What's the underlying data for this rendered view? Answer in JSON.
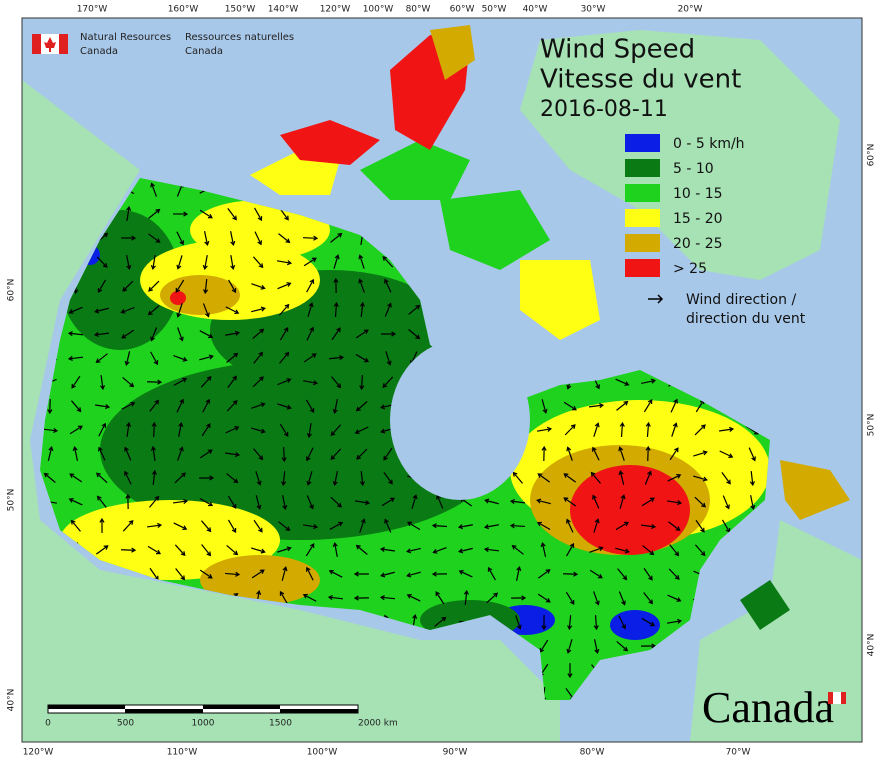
{
  "header": {
    "org_en": [
      "Natural Resources",
      "Canada"
    ],
    "org_fr": [
      "Ressources naturelles",
      "Canada"
    ]
  },
  "title": {
    "en": "Wind Speed",
    "fr": "Vitesse du vent",
    "date": "2016-08-11"
  },
  "legend": {
    "items": [
      {
        "label": "0 - 5 km/h",
        "color": "#0a1ee6"
      },
      {
        "label": "5 - 10",
        "color": "#0a7a14"
      },
      {
        "label": "10 - 15",
        "color": "#1ed21e"
      },
      {
        "label": "15 - 20",
        "color": "#ffff14"
      },
      {
        "label": "20 - 25",
        "color": "#d2aa00"
      },
      {
        "label": "> 25",
        "color": "#f01414"
      }
    ],
    "arrow": [
      "Wind direction /",
      "direction du vent"
    ]
  },
  "axes": {
    "top": [
      "170°W",
      "160°W",
      "150°W",
      "140°W",
      "120°W",
      "100°W",
      "80°W",
      "60°W",
      "50°W",
      "40°W",
      "30°W",
      "20°W"
    ],
    "bottom": [
      "120°W",
      "110°W",
      "100°W",
      "90°W",
      "80°W",
      "70°W"
    ],
    "left": [
      "60°N",
      "50°N",
      "40°N"
    ],
    "right": [
      "60°N",
      "50°N",
      "40°N"
    ]
  },
  "scale": {
    "labels": [
      "0",
      "500",
      "1000",
      "1500",
      "2000 km"
    ]
  },
  "wordmark": "Canada"
}
